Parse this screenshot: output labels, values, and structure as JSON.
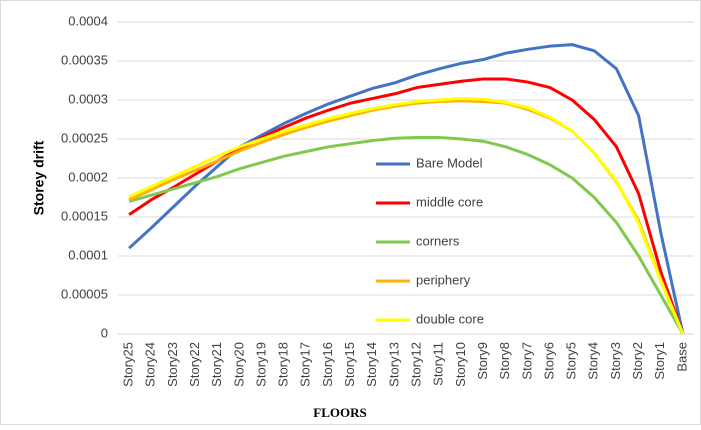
{
  "chart_data": {
    "type": "line",
    "x_label": "FLOORS",
    "y_label": "Storey drift",
    "categories": [
      "Story25",
      "Story24",
      "Story23",
      "Story22",
      "Story21",
      "Story20",
      "Story19",
      "Story18",
      "Story17",
      "Story16",
      "Story15",
      "Story14",
      "Story13",
      "Story12",
      "Story11",
      "Story10",
      "Story9",
      "Story8",
      "Story7",
      "Story6",
      "Story5",
      "Story4",
      "Story3",
      "Story2",
      "Story1",
      "Base"
    ],
    "ylim": [
      0,
      0.0004
    ],
    "yticks": [
      0,
      5e-05,
      0.0001,
      0.00015,
      0.0002,
      0.00025,
      0.0003,
      0.00035,
      0.0004
    ],
    "grid": true,
    "legend": "center",
    "series": [
      {
        "name": "Bare Model",
        "color": "#4472c4",
        "values": [
          0.00011,
          0.000136,
          0.000163,
          0.00019,
          0.000215,
          0.00024,
          0.000255,
          0.00027,
          0.000283,
          0.000295,
          0.000305,
          0.000315,
          0.000322,
          0.000332,
          0.00034,
          0.000347,
          0.000352,
          0.00036,
          0.000365,
          0.000369,
          0.000371,
          0.000363,
          0.00034,
          0.00028,
          0.00013,
          0
        ]
      },
      {
        "name": "middle core",
        "color": "#ff0000",
        "values": [
          0.000153,
          0.000172,
          0.000188,
          0.000205,
          0.000222,
          0.000238,
          0.000252,
          0.000265,
          0.000277,
          0.000287,
          0.000296,
          0.000302,
          0.000308,
          0.000316,
          0.00032,
          0.000324,
          0.000327,
          0.000327,
          0.000323,
          0.000316,
          0.0003,
          0.000275,
          0.00024,
          0.00018,
          8e-05,
          0
        ]
      },
      {
        "name": "corners",
        "color": "#7fc94f",
        "values": [
          0.00017,
          0.000178,
          0.000186,
          0.000194,
          0.000202,
          0.000212,
          0.00022,
          0.000228,
          0.000234,
          0.00024,
          0.000244,
          0.000248,
          0.000251,
          0.000252,
          0.000252,
          0.00025,
          0.000247,
          0.00024,
          0.00023,
          0.000217,
          0.0002,
          0.000175,
          0.000143,
          0.0001,
          5e-05,
          0
        ]
      },
      {
        "name": "periphery",
        "color": "#ffb000",
        "values": [
          0.000172,
          0.000185,
          0.000198,
          0.00021,
          0.000222,
          0.000235,
          0.000246,
          0.000256,
          0.000265,
          0.000273,
          0.00028,
          0.000287,
          0.000292,
          0.000296,
          0.000298,
          0.000299,
          0.000298,
          0.000296,
          0.000288,
          0.000277,
          0.00026,
          0.000232,
          0.000195,
          0.000145,
          7e-05,
          0
        ]
      },
      {
        "name": "double core",
        "color": "#ffff00",
        "values": [
          0.000176,
          0.000189,
          0.000202,
          0.000215,
          0.000228,
          0.00024,
          0.00025,
          0.00026,
          0.000268,
          0.000276,
          0.000283,
          0.000289,
          0.000294,
          0.000298,
          0.0003,
          0.000302,
          0.000301,
          0.000297,
          0.00029,
          0.000278,
          0.00026,
          0.000232,
          0.000196,
          0.000142,
          6.8e-05,
          0
        ]
      }
    ]
  }
}
